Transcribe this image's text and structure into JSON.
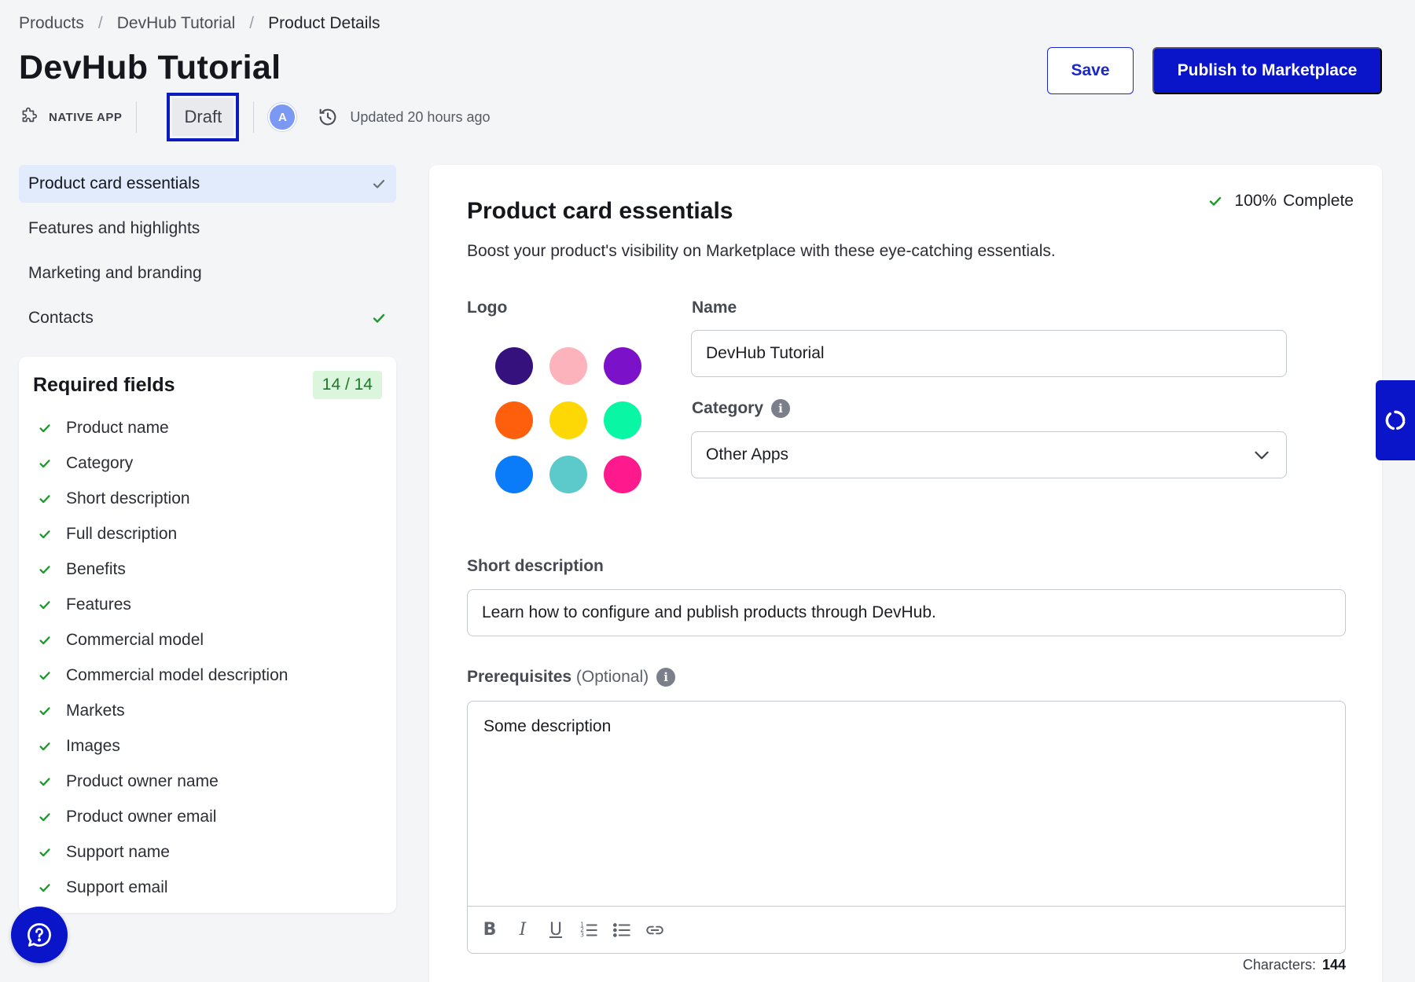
{
  "breadcrumb": {
    "items": [
      "Products",
      "DevHub Tutorial",
      "Product Details"
    ],
    "separator": "/"
  },
  "header": {
    "title": "DevHub Tutorial",
    "type_label": "NATIVE APP",
    "status": "Draft",
    "avatar_initial": "A",
    "updated": "Updated 20 hours ago",
    "save_label": "Save",
    "publish_label": "Publish to Marketplace"
  },
  "sidebar": {
    "items": [
      {
        "label": "Product card essentials",
        "active": true,
        "checked": true
      },
      {
        "label": "Features and highlights",
        "active": false,
        "checked": false
      },
      {
        "label": "Marketing and branding",
        "active": false,
        "checked": false
      },
      {
        "label": "Contacts",
        "active": false,
        "checked": true
      }
    ],
    "required": {
      "title": "Required fields",
      "count": "14 / 14",
      "fields": [
        "Product name",
        "Category",
        "Short description",
        "Full description",
        "Benefits",
        "Features",
        "Commercial model",
        "Commercial model description",
        "Markets",
        "Images",
        "Product owner name",
        "Product owner email",
        "Support name",
        "Support email"
      ]
    }
  },
  "main": {
    "complete_percent": "100%",
    "complete_label": "Complete",
    "title": "Product card essentials",
    "subtitle": "Boost your product's visibility on Marketplace with these eye-catching essentials.",
    "logo_label": "Logo",
    "logo_colors": [
      "#35117e",
      "#fdb3bc",
      "#7b12c9",
      "#fe5f0d",
      "#fed805",
      "#09f6a4",
      "#0a7cf9",
      "#5cc9ca",
      "#fe1a8c"
    ],
    "name_label": "Name",
    "name_value": "DevHub Tutorial",
    "category_label": "Category",
    "category_value": "Other Apps",
    "short_desc_label": "Short description",
    "short_desc_value": "Learn how to configure and publish products through DevHub.",
    "prereq_label": "Prerequisites",
    "prereq_optional": "(Optional)",
    "prereq_value": "Some description",
    "characters_label": "Characters:",
    "characters_value": "144"
  },
  "colors": {
    "accent": "#0a14c8",
    "success": "#1f9a2e",
    "active_bg": "#e2ebfc"
  }
}
